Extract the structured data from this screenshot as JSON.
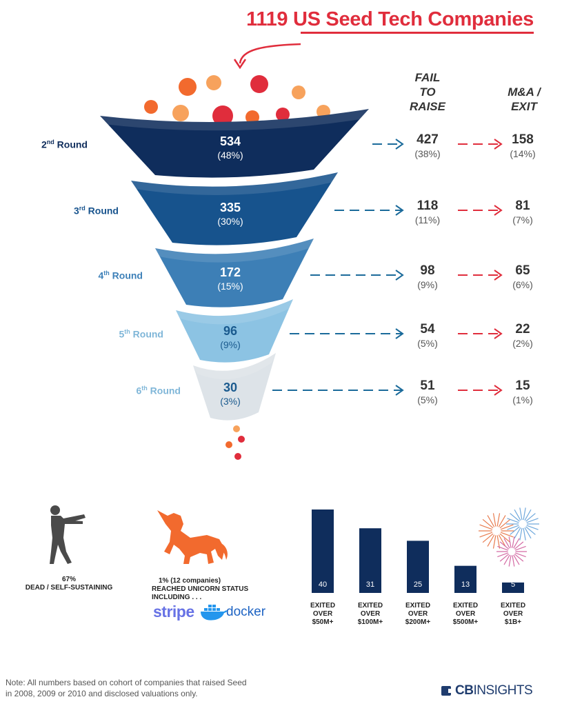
{
  "title": "1119 US Seed Tech Companies",
  "columns": {
    "fail": "FAIL\nTO\nRAISE",
    "exit": "M&A /\nEXIT"
  },
  "colors": {
    "accent_red": "#e02d3c",
    "arrow_blue": "#1a6a9a",
    "bar_navy": "#0f2d5c"
  },
  "chart_data": [
    {
      "type": "funnel",
      "title": "1119 US Seed Tech Companies",
      "stages": [
        {
          "label_prefix": "2",
          "label_suffix": "nd",
          "label_word": " Round",
          "value": "534",
          "pct": "(48%)",
          "fail_value": "427",
          "fail_pct": "(38%)",
          "exit_value": "158",
          "exit_pct": "(14%)",
          "color": "#0f2d5c",
          "label_color": "#0f2d5c"
        },
        {
          "label_prefix": "3",
          "label_suffix": "rd",
          "label_word": " Round",
          "value": "335",
          "pct": "(30%)",
          "fail_value": "118",
          "fail_pct": "(11%)",
          "exit_value": "81",
          "exit_pct": "(7%)",
          "color": "#17538d",
          "label_color": "#17538d"
        },
        {
          "label_prefix": "4",
          "label_suffix": "th",
          "label_word": " Round",
          "value": "172",
          "pct": "(15%)",
          "fail_value": "98",
          "fail_pct": "(9%)",
          "exit_value": "65",
          "exit_pct": "(6%)",
          "color": "#3d7fb6",
          "label_color": "#3d80b8"
        },
        {
          "label_prefix": "5",
          "label_suffix": "th",
          "label_word": " Round",
          "value": "96",
          "pct": "(9%)",
          "fail_value": "54",
          "fail_pct": "(5%)",
          "exit_value": "22",
          "exit_pct": "(2%)",
          "color": "#8cc3e3",
          "label_color": "#7fb6d8"
        },
        {
          "label_prefix": "6",
          "label_suffix": "th",
          "label_word": " Round",
          "value": "30",
          "pct": "(3%)",
          "fail_value": "51",
          "fail_pct": "(5%)",
          "exit_value": "15",
          "exit_pct": "(1%)",
          "color": "#dde3e8",
          "label_color": "#7fb6d8"
        }
      ]
    },
    {
      "type": "bar",
      "categories": [
        "EXITED\nOVER\n$50M+",
        "EXITED\nOVER\n$100M+",
        "EXITED\nOVER\n$200M+",
        "EXITED\nOVER\n$500M+",
        "EXITED\nOVER\n$1B+"
      ],
      "values": [
        40,
        31,
        25,
        13,
        5
      ],
      "ylim": [
        0,
        40
      ]
    }
  ],
  "dead": {
    "pct": "67%",
    "label": "DEAD / SELF-SUSTAINING"
  },
  "unicorn": {
    "pct_text": "1%  (12 companies)",
    "line2": "REACHED UNICORN STATUS",
    "line3": "INCLUDING . . ."
  },
  "logos": {
    "stripe": "stripe",
    "docker": "docker",
    "cbinsights_cb": "CB",
    "cbinsights_word": "INSIGHTS"
  },
  "note": "Note: All numbers based on cohort of companies that raised Seed in 2008, 2009 or 2010 and disclosed valuations only."
}
